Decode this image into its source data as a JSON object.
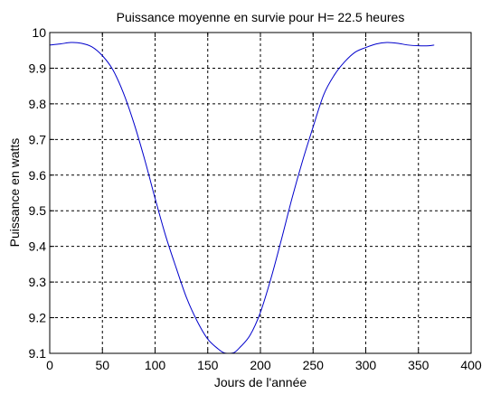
{
  "chart_data": {
    "type": "line",
    "title": "Puissance moyenne en survie pour H= 22.5 heures",
    "xlabel": "Jours de l'année",
    "ylabel": "Puissance en watts",
    "xlim": [
      0,
      400
    ],
    "ylim": [
      9.1,
      10.0
    ],
    "xticks": [
      0,
      50,
      100,
      150,
      200,
      250,
      300,
      350,
      400
    ],
    "yticks": [
      9.1,
      9.2,
      9.3,
      9.4,
      9.5,
      9.6,
      9.7,
      9.8,
      9.9,
      10.0
    ],
    "xtick_labels": [
      "0",
      "50",
      "100",
      "150",
      "200",
      "250",
      "300",
      "350",
      "400"
    ],
    "ytick_labels": [
      "9.1",
      "9.2",
      "9.3",
      "9.4",
      "9.5",
      "9.6",
      "9.7",
      "9.8",
      "9.9",
      "10"
    ],
    "grid": true,
    "grid_style": "dashed",
    "line_color": "#0000cc",
    "series": [
      {
        "x": [
          0,
          10,
          20,
          30,
          40,
          50,
          60,
          70,
          80,
          90,
          100,
          110,
          120,
          130,
          140,
          150,
          160,
          165,
          170,
          175,
          180,
          190,
          200,
          210,
          220,
          230,
          240,
          250,
          260,
          270,
          280,
          290,
          300,
          310,
          320,
          330,
          340,
          350,
          360,
          365
        ],
        "y": [
          9.965,
          9.968,
          9.972,
          9.97,
          9.96,
          9.935,
          9.895,
          9.83,
          9.745,
          9.645,
          9.535,
          9.43,
          9.34,
          9.255,
          9.19,
          9.14,
          9.112,
          9.102,
          9.1,
          9.102,
          9.115,
          9.15,
          9.215,
          9.31,
          9.42,
          9.535,
          9.64,
          9.735,
          9.825,
          9.88,
          9.918,
          9.945,
          9.958,
          9.968,
          9.972,
          9.97,
          9.965,
          9.963,
          9.963,
          9.965
        ]
      }
    ]
  }
}
